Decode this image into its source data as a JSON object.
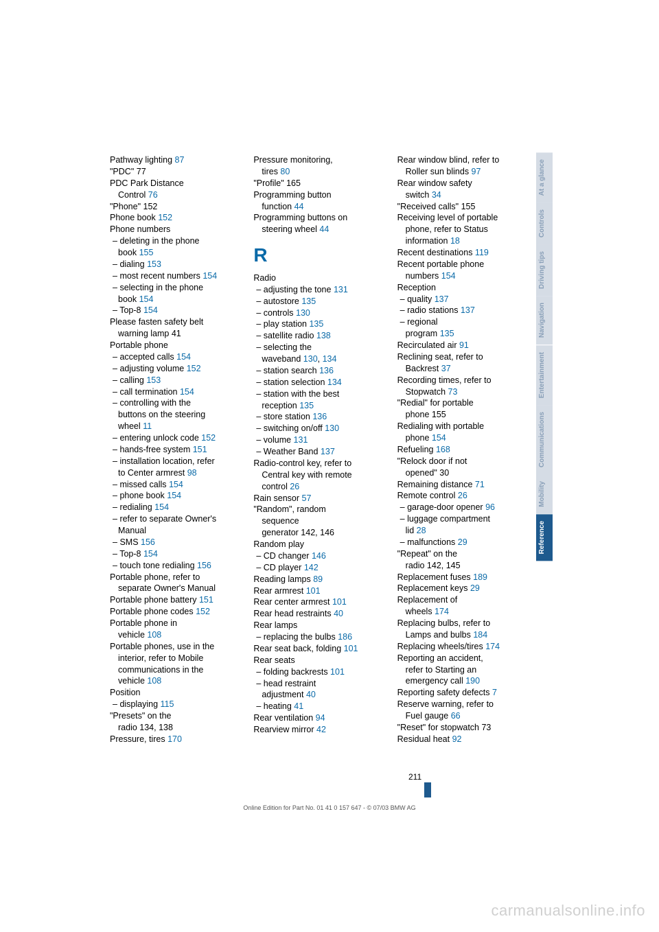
{
  "page_number": "211",
  "footer_text": "Online Edition for Part No. 01 41 0 157 647 - © 07/03 BMW AG",
  "watermark": "carmanualsonline.info",
  "section_letter": "R",
  "tabs": [
    {
      "label": "At a glance",
      "active": false
    },
    {
      "label": "Controls",
      "active": false
    },
    {
      "label": "Driving tips",
      "active": false
    },
    {
      "label": "Navigation",
      "active": false
    },
    {
      "label": "Entertainment",
      "active": false
    },
    {
      "label": "Communications",
      "active": false
    },
    {
      "label": "Mobility",
      "active": false
    },
    {
      "label": "Reference",
      "active": true
    }
  ],
  "col1": [
    {
      "t": "Pathway lighting ",
      "p": "87"
    },
    {
      "t": "\"PDC\" 77"
    },
    {
      "t": "PDC Park Distance"
    },
    {
      "t": "Control ",
      "p": "76",
      "cont": true
    },
    {
      "t": "\"Phone\" 152"
    },
    {
      "t": "Phone book ",
      "p": "152"
    },
    {
      "t": "Phone numbers"
    },
    {
      "t": "deleting in the phone",
      "sub": true
    },
    {
      "t": "book ",
      "p": "155",
      "cont": true
    },
    {
      "t": "dialing ",
      "p": "153",
      "sub": true
    },
    {
      "t": "most recent numbers ",
      "p": "154",
      "sub": true
    },
    {
      "t": "selecting in the phone",
      "sub": true
    },
    {
      "t": "book ",
      "p": "154",
      "cont": true
    },
    {
      "t": "Top-8 ",
      "p": "154",
      "sub": true
    },
    {
      "t": "Please fasten safety belt"
    },
    {
      "t": "warning lamp 41",
      "cont": true
    },
    {
      "t": "Portable phone"
    },
    {
      "t": "accepted calls ",
      "p": "154",
      "sub": true
    },
    {
      "t": "adjusting volume ",
      "p": "152",
      "sub": true
    },
    {
      "t": "calling ",
      "p": "153",
      "sub": true
    },
    {
      "t": "call termination ",
      "p": "154",
      "sub": true
    },
    {
      "t": "controlling with the",
      "sub": true
    },
    {
      "t": "buttons on the steering",
      "cont": true
    },
    {
      "t": "wheel ",
      "p": "11",
      "cont": true
    },
    {
      "t": "entering unlock code ",
      "p": "152",
      "sub": true
    },
    {
      "t": "hands-free system ",
      "p": "151",
      "sub": true
    },
    {
      "t": "installation location, refer",
      "sub": true
    },
    {
      "t": "to Center armrest ",
      "p": "98",
      "cont": true
    },
    {
      "t": "missed calls ",
      "p": "154",
      "sub": true
    },
    {
      "t": "phone book ",
      "p": "154",
      "sub": true
    },
    {
      "t": "redialing ",
      "p": "154",
      "sub": true
    },
    {
      "t": "refer to separate Owner's",
      "sub": true
    },
    {
      "t": "Manual",
      "cont": true
    },
    {
      "t": "SMS ",
      "p": "156",
      "sub": true
    },
    {
      "t": "Top-8 ",
      "p": "154",
      "sub": true
    },
    {
      "t": "touch tone redialing ",
      "p": "156",
      "sub": true
    },
    {
      "t": "Portable phone, refer to"
    },
    {
      "t": "separate Owner's Manual",
      "cont": true
    },
    {
      "t": "Portable phone battery ",
      "p": "151"
    },
    {
      "t": "Portable phone codes ",
      "p": "152"
    },
    {
      "t": "Portable phone in"
    },
    {
      "t": "vehicle ",
      "p": "108",
      "cont": true
    },
    {
      "t": "Portable phones, use in the"
    },
    {
      "t": "interior, refer to Mobile",
      "cont": true
    },
    {
      "t": "communications in the",
      "cont": true
    },
    {
      "t": "vehicle ",
      "p": "108",
      "cont": true
    },
    {
      "t": "Position"
    },
    {
      "t": "displaying ",
      "p": "115",
      "sub": true
    },
    {
      "t": "\"Presets\" on the"
    },
    {
      "t": "radio 134, 138",
      "cont": true
    },
    {
      "t": "Pressure, tires ",
      "p": "170"
    }
  ],
  "col2": [
    {
      "t": "Pressure monitoring,"
    },
    {
      "t": "tires ",
      "p": "80",
      "cont": true
    },
    {
      "t": "\"Profile\" 165"
    },
    {
      "t": "Programming button"
    },
    {
      "t": "function ",
      "p": "44",
      "cont": true
    },
    {
      "t": "Programming buttons on"
    },
    {
      "t": "steering wheel ",
      "p": "44",
      "cont": true
    },
    {
      "letter": true
    },
    {
      "t": "Radio"
    },
    {
      "t": "adjusting the tone ",
      "p": "131",
      "sub": true
    },
    {
      "t": "autostore ",
      "p": "135",
      "sub": true
    },
    {
      "t": "controls ",
      "p": "130",
      "sub": true
    },
    {
      "t": "play station ",
      "p": "135",
      "sub": true
    },
    {
      "t": "satellite radio ",
      "p": "138",
      "sub": true
    },
    {
      "t": "selecting the",
      "sub": true
    },
    {
      "t": "waveband ",
      "p": "130",
      "p2": "134",
      "cont": true
    },
    {
      "t": "station search ",
      "p": "136",
      "sub": true
    },
    {
      "t": "station selection ",
      "p": "134",
      "sub": true
    },
    {
      "t": "station with the best",
      "sub": true
    },
    {
      "t": "reception ",
      "p": "135",
      "cont": true
    },
    {
      "t": "store station ",
      "p": "136",
      "sub": true
    },
    {
      "t": "switching on/off ",
      "p": "130",
      "sub": true
    },
    {
      "t": "volume ",
      "p": "131",
      "sub": true
    },
    {
      "t": "Weather Band ",
      "p": "137",
      "sub": true
    },
    {
      "t": "Radio-control key, refer to"
    },
    {
      "t": "Central key with remote",
      "cont": true
    },
    {
      "t": "control ",
      "p": "26",
      "cont": true
    },
    {
      "t": "Rain sensor ",
      "p": "57"
    },
    {
      "t": "\"Random\", random"
    },
    {
      "t": "sequence",
      "cont": true
    },
    {
      "t": "generator 142, 146",
      "cont": true
    },
    {
      "t": "Random play"
    },
    {
      "t": "CD changer ",
      "p": "146",
      "sub": true
    },
    {
      "t": "CD player ",
      "p": "142",
      "sub": true
    },
    {
      "t": "Reading lamps ",
      "p": "89"
    },
    {
      "t": "Rear armrest ",
      "p": "101"
    },
    {
      "t": "Rear center armrest ",
      "p": "101"
    },
    {
      "t": "Rear head restraints ",
      "p": "40"
    },
    {
      "t": "Rear lamps"
    },
    {
      "t": "replacing the bulbs ",
      "p": "186",
      "sub": true
    },
    {
      "t": "Rear seat back, folding ",
      "p": "101"
    },
    {
      "t": "Rear seats"
    },
    {
      "t": "folding backrests ",
      "p": "101",
      "sub": true
    },
    {
      "t": "head restraint",
      "sub": true
    },
    {
      "t": "adjustment ",
      "p": "40",
      "cont": true
    },
    {
      "t": "heating ",
      "p": "41",
      "sub": true
    },
    {
      "t": "Rear ventilation ",
      "p": "94"
    },
    {
      "t": "Rearview mirror ",
      "p": "42"
    }
  ],
  "col3": [
    {
      "t": "Rear window blind, refer to"
    },
    {
      "t": "Roller sun blinds ",
      "p": "97",
      "cont": true
    },
    {
      "t": "Rear window safety"
    },
    {
      "t": "switch ",
      "p": "34",
      "cont": true
    },
    {
      "t": "\"Received calls\" 155"
    },
    {
      "t": "Receiving level of portable"
    },
    {
      "t": "phone, refer to Status",
      "cont": true
    },
    {
      "t": "information ",
      "p": "18",
      "cont": true
    },
    {
      "t": "Recent destinations ",
      "p": "119"
    },
    {
      "t": "Recent portable phone"
    },
    {
      "t": "numbers ",
      "p": "154",
      "cont": true
    },
    {
      "t": "Reception"
    },
    {
      "t": "quality ",
      "p": "137",
      "sub": true
    },
    {
      "t": "radio stations ",
      "p": "137",
      "sub": true
    },
    {
      "t": "regional",
      "sub": true
    },
    {
      "t": "program ",
      "p": "135",
      "cont": true
    },
    {
      "t": "Recirculated air ",
      "p": "91"
    },
    {
      "t": "Reclining seat, refer to"
    },
    {
      "t": "Backrest ",
      "p": "37",
      "cont": true
    },
    {
      "t": "Recording times, refer to"
    },
    {
      "t": "Stopwatch ",
      "p": "73",
      "cont": true
    },
    {
      "t": "\"Redial\" for portable"
    },
    {
      "t": "phone 155",
      "cont": true
    },
    {
      "t": "Redialing with portable"
    },
    {
      "t": "phone ",
      "p": "154",
      "cont": true
    },
    {
      "t": "Refueling ",
      "p": "168"
    },
    {
      "t": "\"Relock door if not"
    },
    {
      "t": "opened\" 30",
      "cont": true
    },
    {
      "t": "Remaining distance ",
      "p": "71"
    },
    {
      "t": "Remote control ",
      "p": "26"
    },
    {
      "t": "garage-door opener ",
      "p": "96",
      "sub": true
    },
    {
      "t": "luggage compartment",
      "sub": true
    },
    {
      "t": "lid ",
      "p": "28",
      "cont": true
    },
    {
      "t": "malfunctions ",
      "p": "29",
      "sub": true
    },
    {
      "t": "\"Repeat\" on the"
    },
    {
      "t": "radio 142, 145",
      "cont": true
    },
    {
      "t": "Replacement fuses ",
      "p": "189"
    },
    {
      "t": "Replacement keys ",
      "p": "29"
    },
    {
      "t": "Replacement of"
    },
    {
      "t": "wheels ",
      "p": "174",
      "cont": true
    },
    {
      "t": "Replacing bulbs, refer to"
    },
    {
      "t": "Lamps and bulbs ",
      "p": "184",
      "cont": true
    },
    {
      "t": "Replacing wheels/tires ",
      "p": "174"
    },
    {
      "t": "Reporting an accident,"
    },
    {
      "t": "refer to Starting an",
      "cont": true
    },
    {
      "t": "emergency call ",
      "p": "190",
      "cont": true
    },
    {
      "t": "Reporting safety defects ",
      "p": "7"
    },
    {
      "t": "Reserve warning, refer to"
    },
    {
      "t": "Fuel gauge ",
      "p": "66",
      "cont": true
    },
    {
      "t": "\"Reset\" for stopwatch 73"
    },
    {
      "t": "Residual heat ",
      "p": "92"
    }
  ]
}
